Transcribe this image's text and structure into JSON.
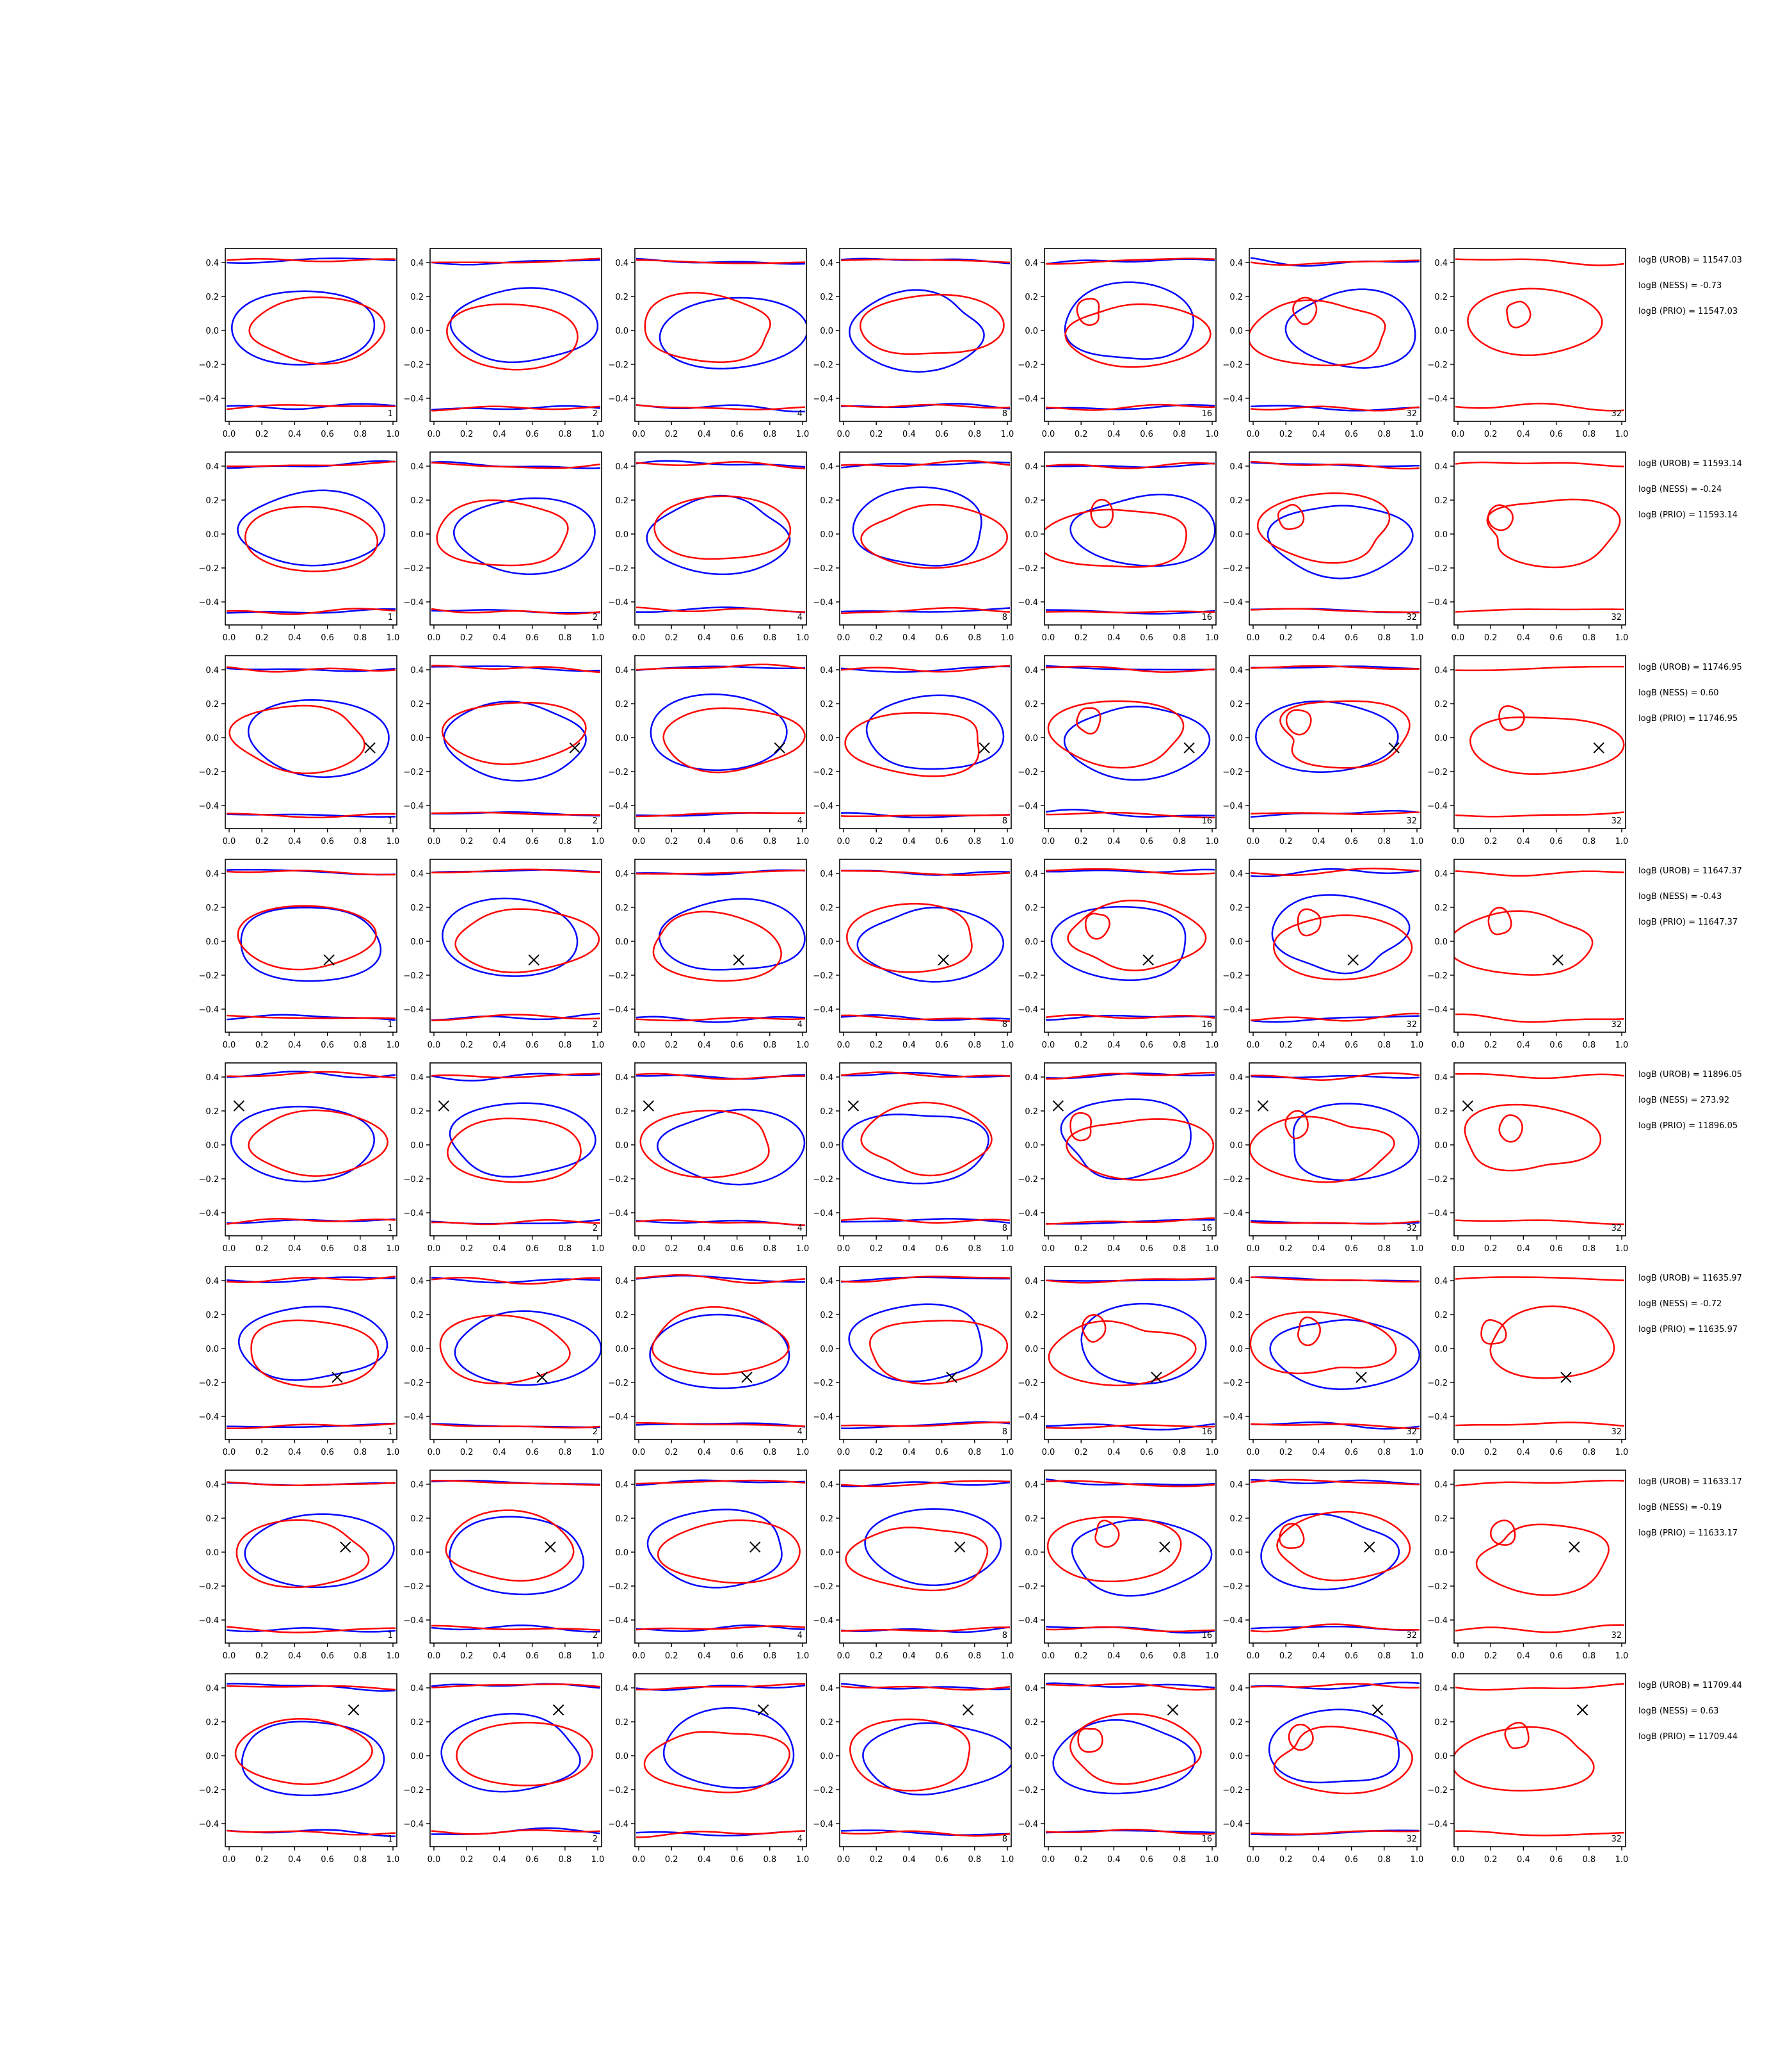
{
  "figure": {
    "rows": 8,
    "cols": 7,
    "colors": {
      "line_a": "#0000ff",
      "line_b": "#ff0000",
      "marker": "#000000",
      "axes": "#000000"
    },
    "x_ticks": [
      "0.0",
      "0.2",
      "0.4",
      "0.6",
      "0.8",
      "1.0"
    ],
    "y_ticks": [
      "0.4",
      "0.2",
      "0.0",
      "−0.2",
      "−0.4"
    ]
  },
  "chart_data": {
    "type": "contour",
    "xlim": [
      0.0,
      1.0
    ],
    "ylim": [
      -0.45,
      0.45
    ],
    "panel_labels": [
      "1",
      "2",
      "4",
      "8",
      "16",
      "32",
      "32"
    ],
    "rows": [
      {
        "marker": null,
        "annotations": [
          "logB (UROB) = 11547.03",
          "logB (NESS) = -0.73",
          "logB (PRIO) = 11547.03"
        ]
      },
      {
        "marker": null,
        "annotations": [
          "logB (UROB) = 11593.14",
          "logB (NESS) = -0.24",
          "logB (PRIO) = 11593.14"
        ]
      },
      {
        "marker": {
          "x": 0.86,
          "y": -0.06
        },
        "annotations": [
          "logB (UROB) = 11746.95",
          "logB (NESS) = 0.60",
          "logB (PRIO) = 11746.95"
        ]
      },
      {
        "marker": {
          "x": 0.61,
          "y": -0.11
        },
        "annotations": [
          "logB (UROB) = 11647.37",
          "logB (NESS) = -0.43",
          "logB (PRIO) = 11647.37"
        ]
      },
      {
        "marker": {
          "x": 0.06,
          "y": 0.23
        },
        "annotations": [
          "logB (UROB) = 11896.05",
          "logB (NESS) = 273.92",
          "logB (PRIO) = 11896.05"
        ]
      },
      {
        "marker": {
          "x": 0.66,
          "y": -0.17
        },
        "annotations": [
          "logB (UROB) = 11635.97",
          "logB (NESS) = -0.72",
          "logB (PRIO) = 11635.97"
        ]
      },
      {
        "marker": {
          "x": 0.71,
          "y": 0.03
        },
        "annotations": [
          "logB (UROB) = 11633.17",
          "logB (NESS) = -0.19",
          "logB (PRIO) = 11633.17"
        ]
      },
      {
        "marker": {
          "x": 0.76,
          "y": 0.27
        },
        "annotations": [
          "logB (UROB) = 11709.44",
          "logB (NESS) = 0.63",
          "logB (PRIO) = 11709.44"
        ]
      }
    ]
  }
}
